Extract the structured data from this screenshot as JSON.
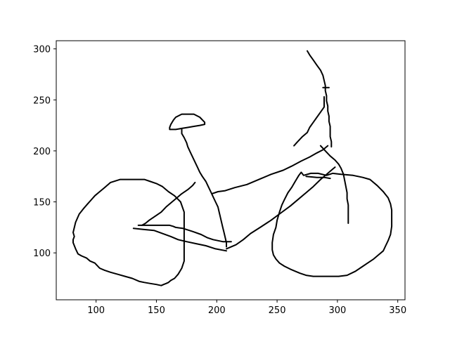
{
  "chart_data": {
    "type": "line",
    "title": "",
    "xlabel": "",
    "ylabel": "",
    "xlim": [
      67,
      356
    ],
    "ylim": [
      54,
      308
    ],
    "grid": false,
    "legend": "none",
    "line_color": "#000000",
    "xticks": [
      100,
      150,
      200,
      250,
      300,
      350
    ],
    "yticks": [
      100,
      150,
      200,
      250,
      300
    ],
    "series": [
      {
        "points": [
          [
            82,
            116
          ],
          [
            81,
            113
          ],
          [
            81,
            110
          ],
          [
            83,
            104
          ],
          [
            85,
            99
          ],
          [
            88,
            97
          ],
          [
            92,
            95
          ],
          [
            95,
            92
          ],
          [
            99,
            90
          ],
          [
            103,
            85
          ],
          [
            107,
            83
          ],
          [
            112,
            81
          ],
          [
            118,
            79
          ],
          [
            124,
            77
          ],
          [
            130,
            75
          ],
          [
            136,
            72
          ],
          [
            140,
            71
          ],
          [
            145,
            70
          ],
          [
            150,
            69
          ],
          [
            154,
            68
          ],
          [
            156,
            69
          ],
          [
            158,
            70
          ],
          [
            160,
            71
          ],
          [
            162,
            73
          ],
          [
            165,
            75
          ],
          [
            168,
            79
          ],
          [
            171,
            85
          ],
          [
            173,
            92
          ],
          [
            173,
            100
          ],
          [
            173,
            110
          ],
          [
            173,
            120
          ],
          [
            173,
            130
          ],
          [
            173,
            140
          ],
          [
            170,
            150
          ],
          [
            165,
            156
          ],
          [
            160,
            160
          ],
          [
            155,
            165
          ],
          [
            150,
            168
          ],
          [
            145,
            170
          ],
          [
            140,
            172
          ],
          [
            130,
            172
          ],
          [
            120,
            172
          ],
          [
            112,
            169
          ],
          [
            107,
            164
          ],
          [
            103,
            160
          ],
          [
            99,
            156
          ],
          [
            96,
            152
          ],
          [
            93,
            148
          ],
          [
            90,
            144
          ],
          [
            86,
            138
          ],
          [
            83,
            130
          ],
          [
            81,
            120
          ],
          [
            82,
            116
          ]
        ]
      },
      {
        "points": [
          [
            138,
            127
          ],
          [
            141,
            129
          ],
          [
            144,
            132
          ],
          [
            149,
            136
          ],
          [
            154,
            140
          ],
          [
            158,
            145
          ],
          [
            162,
            149
          ],
          [
            167,
            154
          ],
          [
            171,
            158
          ],
          [
            176,
            162
          ],
          [
            180,
            166
          ],
          [
            182,
            169
          ]
        ]
      },
      {
        "points": [
          [
            135,
            127
          ],
          [
            145,
            127
          ],
          [
            155,
            127
          ],
          [
            161,
            127
          ],
          [
            164,
            126
          ],
          [
            166,
            125
          ],
          [
            172,
            124
          ],
          [
            180,
            121
          ],
          [
            187,
            118
          ],
          [
            192,
            115
          ],
          [
            197,
            113
          ],
          [
            205,
            111
          ],
          [
            212,
            111
          ]
        ]
      },
      {
        "points": [
          [
            131,
            124
          ],
          [
            139,
            123
          ],
          [
            148,
            122
          ],
          [
            155,
            119
          ],
          [
            162,
            116
          ],
          [
            168,
            113
          ],
          [
            175,
            111
          ],
          [
            183,
            109
          ],
          [
            191,
            107
          ],
          [
            199,
            104
          ],
          [
            208,
            102
          ]
        ]
      },
      {
        "points": [
          [
            161,
            221
          ],
          [
            161,
            223
          ],
          [
            162,
            226
          ],
          [
            164,
            230
          ],
          [
            166,
            233
          ],
          [
            171,
            236
          ],
          [
            175,
            236
          ],
          [
            181,
            236
          ],
          [
            186,
            233
          ],
          [
            190,
            228
          ],
          [
            190,
            226
          ],
          [
            186,
            225
          ],
          [
            181,
            224
          ],
          [
            176,
            223
          ],
          [
            171,
            222
          ],
          [
            166,
            221
          ],
          [
            161,
            221
          ]
        ]
      },
      {
        "points": [
          [
            171,
            221
          ],
          [
            171,
            217
          ],
          [
            173,
            213
          ],
          [
            175,
            208
          ],
          [
            176,
            204
          ],
          [
            178,
            199
          ],
          [
            180,
            194
          ],
          [
            182,
            189
          ],
          [
            184,
            184
          ],
          [
            186,
            179
          ],
          [
            188,
            175
          ],
          [
            191,
            170
          ],
          [
            193,
            165
          ],
          [
            195,
            160
          ],
          [
            197,
            155
          ],
          [
            199,
            150
          ],
          [
            201,
            145
          ],
          [
            202,
            140
          ],
          [
            203,
            135
          ],
          [
            204,
            130
          ],
          [
            205,
            125
          ],
          [
            206,
            120
          ],
          [
            207,
            115
          ],
          [
            208,
            110
          ],
          [
            208,
            106
          ]
        ]
      },
      {
        "points": [
          [
            196,
            158
          ],
          [
            201,
            160
          ],
          [
            207,
            161
          ],
          [
            215,
            164
          ],
          [
            225,
            167
          ],
          [
            235,
            172
          ],
          [
            245,
            177
          ],
          [
            255,
            181
          ],
          [
            262,
            185
          ],
          [
            270,
            190
          ],
          [
            277,
            194
          ],
          [
            283,
            198
          ],
          [
            288,
            201
          ],
          [
            292,
            205
          ]
        ]
      },
      {
        "points": [
          [
            208,
            104
          ],
          [
            216,
            108
          ],
          [
            222,
            113
          ],
          [
            228,
            119
          ],
          [
            236,
            125
          ],
          [
            245,
            132
          ],
          [
            253,
            139
          ],
          [
            261,
            146
          ],
          [
            268,
            153
          ],
          [
            274,
            159
          ],
          [
            280,
            165
          ],
          [
            286,
            172
          ],
          [
            292,
            178
          ],
          [
            296,
            182
          ],
          [
            298,
            184
          ]
        ]
      },
      {
        "points": [
          [
            275,
            298
          ],
          [
            277,
            294
          ],
          [
            280,
            289
          ],
          [
            283,
            284
          ],
          [
            286,
            279
          ],
          [
            288,
            274
          ],
          [
            289,
            269
          ],
          [
            290,
            264
          ],
          [
            290,
            259
          ],
          [
            291,
            254
          ],
          [
            291,
            249
          ],
          [
            292,
            244
          ],
          [
            292,
            239
          ],
          [
            293,
            234
          ],
          [
            293,
            229
          ],
          [
            294,
            224
          ],
          [
            294,
            219
          ],
          [
            294,
            214
          ],
          [
            295,
            209
          ],
          [
            295,
            204
          ]
        ]
      },
      {
        "points": [
          [
            288,
            262
          ],
          [
            293,
            262
          ]
        ]
      },
      {
        "points": [
          [
            289,
            253
          ],
          [
            289,
            243
          ],
          [
            286,
            238
          ],
          [
            283,
            233
          ],
          [
            280,
            228
          ],
          [
            277,
            223
          ],
          [
            275,
            218
          ],
          [
            271,
            214
          ],
          [
            267,
            209
          ],
          [
            264,
            205
          ]
        ]
      },
      {
        "points": [
          [
            286,
            205
          ],
          [
            290,
            200
          ],
          [
            294,
            195
          ],
          [
            298,
            191
          ],
          [
            301,
            187
          ],
          [
            303,
            183
          ],
          [
            305,
            177
          ],
          [
            306,
            171
          ],
          [
            307,
            165
          ],
          [
            308,
            159
          ],
          [
            308,
            153
          ],
          [
            309,
            147
          ],
          [
            309,
            141
          ],
          [
            309,
            135
          ],
          [
            309,
            129
          ]
        ]
      },
      {
        "points": [
          [
            303,
            177
          ],
          [
            313,
            176
          ],
          [
            321,
            174
          ],
          [
            327,
            172
          ],
          [
            333,
            166
          ],
          [
            338,
            160
          ],
          [
            342,
            154
          ],
          [
            344,
            148
          ],
          [
            345,
            142
          ],
          [
            345,
            134
          ],
          [
            345,
            126
          ],
          [
            344,
            118
          ],
          [
            342,
            112
          ],
          [
            340,
            107
          ],
          [
            338,
            102
          ],
          [
            334,
            98
          ],
          [
            330,
            94
          ],
          [
            325,
            90
          ],
          [
            320,
            86
          ],
          [
            315,
            82
          ],
          [
            308,
            78
          ],
          [
            301,
            77
          ],
          [
            294,
            77
          ],
          [
            287,
            77
          ],
          [
            280,
            77
          ],
          [
            274,
            78
          ],
          [
            269,
            80
          ],
          [
            265,
            82
          ],
          [
            261,
            84
          ],
          [
            256,
            87
          ],
          [
            252,
            90
          ],
          [
            249,
            94
          ],
          [
            247,
            98
          ],
          [
            246,
            103
          ],
          [
            246,
            110
          ],
          [
            247,
            118
          ],
          [
            249,
            125
          ],
          [
            250,
            132
          ],
          [
            252,
            140
          ],
          [
            254,
            147
          ],
          [
            256,
            152
          ],
          [
            259,
            159
          ],
          [
            262,
            164
          ],
          [
            265,
            170
          ],
          [
            268,
            176
          ],
          [
            270,
            179
          ],
          [
            272,
            176
          ],
          [
            278,
            178
          ],
          [
            284,
            178
          ],
          [
            291,
            176
          ],
          [
            296,
            178
          ],
          [
            303,
            177
          ]
        ]
      },
      {
        "points": [
          [
            274,
            175
          ],
          [
            283,
            174
          ],
          [
            289,
            174
          ],
          [
            294,
            173
          ]
        ]
      }
    ]
  }
}
